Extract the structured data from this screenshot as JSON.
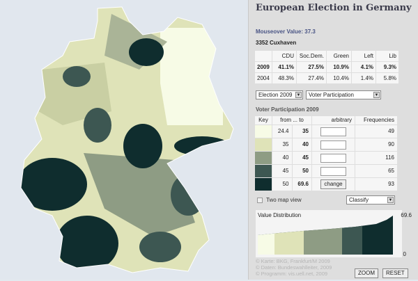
{
  "title": "European Election in Germany",
  "mouseover": "Mouseover Value: 37.3",
  "district": "3352 Cuxhaven",
  "results": {
    "headers": [
      "",
      "CDU",
      "Soc.Dem.",
      "Green",
      "Left",
      "Lib"
    ],
    "rows": [
      [
        "2009",
        "41.1%",
        "27.5%",
        "10.9%",
        "4.1%",
        "9.3%"
      ],
      [
        "2004",
        "48.3%",
        "27.4%",
        "10.4%",
        "1.4%",
        "5.8%"
      ]
    ]
  },
  "election_select": "Election 2009",
  "metric_select": "Voter Participation",
  "legend_title": "Voter Participation 2009",
  "legend": {
    "headers": [
      "Key",
      "from ... to",
      "arbitrary",
      "Frequencies"
    ],
    "rows": [
      {
        "from": "24.4",
        "to": "35",
        "freq": "49",
        "color": "#f7fbe6"
      },
      {
        "from": "35",
        "to": "40",
        "freq": "90",
        "color": "#dfe3b8"
      },
      {
        "from": "40",
        "to": "45",
        "freq": "116",
        "color": "#8e9c84"
      },
      {
        "from": "45",
        "to": "50",
        "freq": "65",
        "color": "#3d5752"
      },
      {
        "from": "50",
        "to": "69.6",
        "freq": "93",
        "color": "#0f2d2e"
      }
    ],
    "change": "change"
  },
  "two_map": "Two map view",
  "classify": "Classify",
  "distribution": {
    "title": "Value Distribution",
    "max": "69.6",
    "min": "0"
  },
  "footer": [
    "© Karte: BKG, Frankfurt/M 2009",
    "© Daten: Bundeswahlleiter, 2009",
    "© Programm: vis.uell.net, 2009"
  ],
  "zoom": "ZOOM",
  "reset": "RESET"
}
